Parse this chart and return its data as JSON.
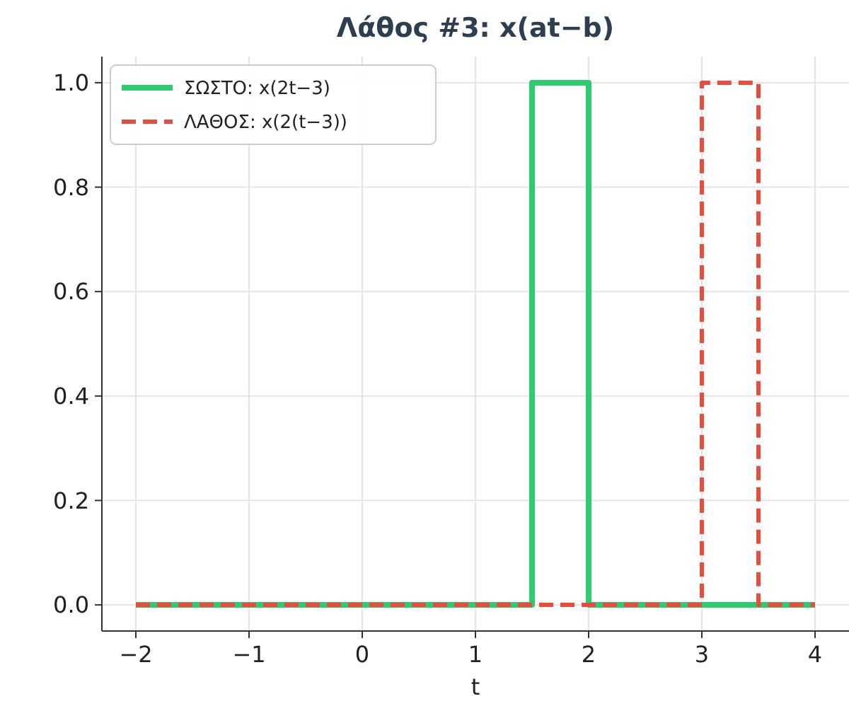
{
  "chart_data": {
    "type": "line",
    "title": "Λάθος #3: x(at−b)",
    "xlabel": "t",
    "xlim": [
      -2.3,
      4.3
    ],
    "ylim": [
      -0.05,
      1.05
    ],
    "xticks": [
      {
        "value": -2,
        "label": "−2"
      },
      {
        "value": -1,
        "label": "−1"
      },
      0,
      1,
      2,
      3,
      4
    ],
    "yticks": [
      {
        "value": 0,
        "label": "0.0"
      },
      {
        "value": 0.2,
        "label": "0.2"
      },
      {
        "value": 0.4,
        "label": "0.4"
      },
      {
        "value": 0.6,
        "label": "0.6"
      },
      {
        "value": 0.8,
        "label": "0.8"
      },
      {
        "value": 1,
        "label": "1.0"
      }
    ],
    "grid": true,
    "legend": "top left",
    "series": [
      {
        "name": "ΣΩΣΤΟ: x(2t−3)",
        "color": "#2ecc71",
        "line_style": "solid",
        "x": [
          -2,
          1.5,
          1.5,
          2,
          2,
          4
        ],
        "values": [
          0,
          0,
          1,
          1,
          0,
          0
        ]
      },
      {
        "name": "ΛΑΘΟΣ: x(2(t−3))",
        "color": "#e74c3c",
        "line_style": "dashed",
        "x": [
          -2,
          3,
          3,
          3.5,
          3.5,
          4
        ],
        "values": [
          0,
          0,
          1,
          1,
          0,
          0
        ]
      }
    ]
  }
}
